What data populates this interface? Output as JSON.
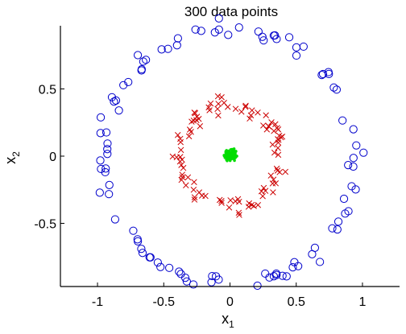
{
  "chart_data": {
    "type": "scatter",
    "title": "300 data points",
    "xlabel": {
      "base": "x",
      "sub": "1"
    },
    "ylabel": {
      "base": "x",
      "sub": "2"
    },
    "xlim": [
      -1.28,
      1.28
    ],
    "ylim": [
      -0.97,
      0.97
    ],
    "xticks": [
      -1,
      -0.5,
      0,
      0.5,
      1
    ],
    "xtick_labels": [
      "-1",
      "-0.5",
      "0",
      "0.5",
      "1"
    ],
    "yticks": [
      -0.5,
      0,
      0.5
    ],
    "ytick_labels": [
      "-0.5",
      "0",
      "0.5"
    ],
    "grid": false,
    "legend": "none",
    "series": [
      {
        "marker": "circle-open",
        "color": "#0000cc",
        "count": 100,
        "radius_mean": 0.95,
        "radius_jitter": 0.03,
        "center": [
          0,
          0
        ]
      },
      {
        "marker": "x",
        "color": "#cc0000",
        "count": 100,
        "radius_mean": 0.38,
        "radius_jitter": 0.035,
        "center": [
          0,
          0
        ]
      },
      {
        "marker": "dot",
        "color": "#00dd00",
        "count": 100,
        "center": [
          0,
          0.01
        ],
        "spread": 0.022
      }
    ],
    "colors": {
      "axis": "#000000",
      "background": "#ffffff"
    }
  }
}
